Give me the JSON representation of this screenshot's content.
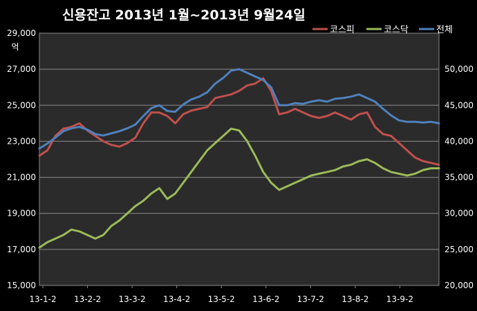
{
  "chart_data": {
    "type": "line",
    "title": "신용잔고 2013년 1월~2013년 9월24일",
    "ylabel": "억",
    "ylabel_right": "",
    "ylim": [
      15000,
      29000
    ],
    "ylim_right": [
      20000,
      55000
    ],
    "yticks_left": [
      "15,000",
      "17,000",
      "19,000",
      "21,000",
      "23,000",
      "25,000",
      "27,000",
      "29,000"
    ],
    "yticks_right": [
      "20,000",
      "25,000",
      "30,000",
      "35,000",
      "40,000",
      "45,000",
      "50,000"
    ],
    "categories": [
      "13-1-2",
      "13-2-2",
      "13-3-2",
      "13-4-2",
      "13-5-2",
      "13-6-2",
      "13-7-2",
      "13-8-2",
      "13-9-2"
    ],
    "x_range": [
      0,
      100
    ],
    "grid": true,
    "legend_position": "top-right",
    "series": [
      {
        "name": "코스피",
        "axis": "left",
        "color": "#c0504d",
        "x": [
          0,
          2,
          4,
          6,
          8,
          10,
          12,
          14,
          16,
          18,
          20,
          22,
          24,
          26,
          28,
          30,
          32,
          34,
          36,
          38,
          40,
          42,
          44,
          46,
          48,
          50,
          52,
          54,
          56,
          58,
          60,
          62,
          64,
          66,
          68,
          70,
          72,
          74,
          76,
          78,
          80,
          82,
          84,
          86,
          88,
          90,
          92,
          94,
          96,
          98,
          100
        ],
        "values": [
          22200,
          22500,
          23300,
          23700,
          23800,
          24000,
          23600,
          23300,
          23000,
          22800,
          22700,
          22900,
          23200,
          24000,
          24600,
          24600,
          24400,
          24000,
          24500,
          24700,
          24800,
          24900,
          25400,
          25500,
          25600,
          25800,
          26100,
          26200,
          26500,
          25800,
          24500,
          24600,
          24800,
          24600,
          24400,
          24300,
          24400,
          24600,
          24400,
          24200,
          24500,
          24600,
          23800,
          23400,
          23300,
          22900,
          22500,
          22100,
          21900,
          21800,
          21700
        ]
      },
      {
        "name": "코스닥",
        "axis": "left",
        "color": "#9bbb59",
        "x": [
          0,
          2,
          4,
          6,
          8,
          10,
          12,
          14,
          16,
          18,
          20,
          22,
          24,
          26,
          28,
          30,
          32,
          34,
          36,
          38,
          40,
          42,
          44,
          46,
          48,
          50,
          52,
          54,
          56,
          58,
          60,
          62,
          64,
          66,
          68,
          70,
          72,
          74,
          76,
          78,
          80,
          82,
          84,
          86,
          88,
          90,
          92,
          94,
          96,
          98,
          100
        ],
        "values": [
          17100,
          17400,
          17600,
          17800,
          18100,
          18000,
          17800,
          17600,
          17800,
          18300,
          18600,
          19000,
          19400,
          19700,
          20100,
          20400,
          19800,
          20100,
          20700,
          21300,
          21900,
          22500,
          22900,
          23300,
          23700,
          23600,
          23000,
          22200,
          21300,
          20700,
          20300,
          20500,
          20700,
          20900,
          21100,
          21200,
          21300,
          21400,
          21600,
          21700,
          21900,
          22000,
          21800,
          21500,
          21300,
          21200,
          21100,
          21200,
          21400,
          21500,
          21500
        ]
      },
      {
        "name": "전체",
        "axis": "right",
        "color": "#4f81bd",
        "x": [
          0,
          2,
          4,
          6,
          8,
          10,
          12,
          14,
          16,
          18,
          20,
          22,
          24,
          26,
          28,
          30,
          32,
          34,
          36,
          38,
          40,
          42,
          44,
          46,
          48,
          50,
          52,
          54,
          56,
          58,
          60,
          62,
          64,
          66,
          68,
          70,
          72,
          74,
          76,
          78,
          80,
          82,
          84,
          86,
          88,
          90,
          92,
          94,
          96,
          98,
          100
        ],
        "values": [
          39000,
          39700,
          40500,
          41400,
          41800,
          42000,
          41600,
          41000,
          40800,
          41100,
          41400,
          41800,
          42300,
          43500,
          44600,
          45000,
          44200,
          44100,
          45100,
          45800,
          46200,
          46800,
          48000,
          48800,
          49800,
          50000,
          49500,
          49000,
          48500,
          47500,
          45000,
          45000,
          45300,
          45200,
          45500,
          45700,
          45500,
          45900,
          46000,
          46200,
          46500,
          46000,
          45500,
          44500,
          43600,
          42900,
          42700,
          42700,
          42600,
          42700,
          42500
        ]
      }
    ]
  }
}
